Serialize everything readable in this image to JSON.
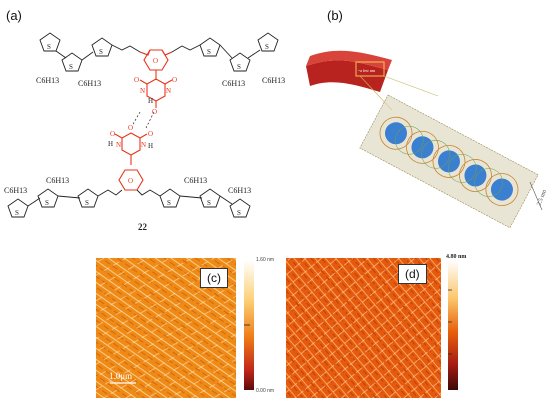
{
  "panels": {
    "a": {
      "label": "(a)",
      "compound_number": "22"
    },
    "b": {
      "label": "(b)",
      "dimension_label": "2.5 nm",
      "bundle_label": "~a few nm"
    },
    "c": {
      "label": "(c)",
      "scale_bar": "1.0μm",
      "color_scale": {
        "top": "1.60 nm",
        "bottom": "0.00 nm"
      }
    },
    "d": {
      "label": "(d)",
      "color_scale": {
        "top": "4.80 nm"
      }
    }
  },
  "chemistry": {
    "hexyl": "C6H13",
    "hetero_atoms": {
      "sulfur": "S",
      "oxygen": "O",
      "nitrogen": "N",
      "hydrogen": "H"
    }
  },
  "colors": {
    "dye_core": "#e8341a",
    "afm_c_base": "#f08a16",
    "afm_d_base": "#e65a0e",
    "tube": "#b8231f",
    "assembly_blue": "#3b7fd0"
  }
}
